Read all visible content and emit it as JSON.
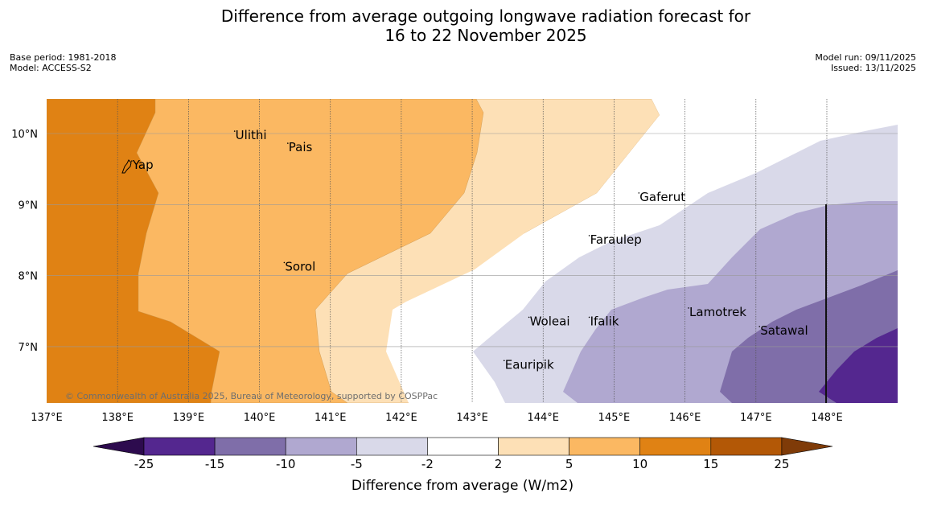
{
  "header": {
    "title_line1": "Difference from average outgoing longwave radiation forecast for",
    "title_line2": "16 to 22 November 2025",
    "base_period": "Base period: 1981-2018",
    "model": "Model: ACCESS-S2",
    "model_run": "Model run: 09/11/2025",
    "issued": "Issued: 13/11/2025"
  },
  "map": {
    "lon_labels": [
      "137°E",
      "138°E",
      "139°E",
      "140°E",
      "141°E",
      "142°E",
      "143°E",
      "144°E",
      "145°E",
      "146°E",
      "147°E",
      "148°E"
    ],
    "lat_labels": [
      "10°N",
      "9°N",
      "8°N",
      "7°N"
    ],
    "places": [
      {
        "name": "Yap",
        "lon": 138.2,
        "lat": 9.5
      },
      {
        "name": "Ulithi",
        "lon": 139.65,
        "lat": 9.92
      },
      {
        "name": "Pais",
        "lon": 140.4,
        "lat": 9.75
      },
      {
        "name": "Gaferut",
        "lon": 145.35,
        "lat": 9.05
      },
      {
        "name": "Faraulep",
        "lon": 144.65,
        "lat": 8.45
      },
      {
        "name": "Sorol",
        "lon": 140.35,
        "lat": 8.07
      },
      {
        "name": "Lamotrek",
        "lon": 146.05,
        "lat": 7.43
      },
      {
        "name": "Woleai",
        "lon": 143.8,
        "lat": 7.3
      },
      {
        "name": "Ifalik",
        "lon": 144.65,
        "lat": 7.3
      },
      {
        "name": "Satawal",
        "lon": 147.05,
        "lat": 7.17
      },
      {
        "name": "Eauripik",
        "lon": 143.45,
        "lat": 6.69
      }
    ],
    "copyright": "© Commonwealth of Australia 2025, Bureau of Meteorology, supported by COSPPac"
  },
  "colorbar": {
    "title": "Difference from average (W/m2)",
    "ticks": [
      "-25",
      "-15",
      "-10",
      "-5",
      "-2",
      "2",
      "5",
      "10",
      "15",
      "25"
    ],
    "colors": {
      "below": "#2d0b4e",
      "n25_15": "#54278f",
      "n15_10": "#7f6ea9",
      "n10_5": "#b0a8d0",
      "n5_2": "#d9d9e9",
      "n2_2": "#ffffff",
      "p2_5": "#fde0b6",
      "p5_10": "#fbb862",
      "p10_15": "#e08214",
      "p15_25": "#b35806",
      "above": "#7f3b08"
    }
  }
}
